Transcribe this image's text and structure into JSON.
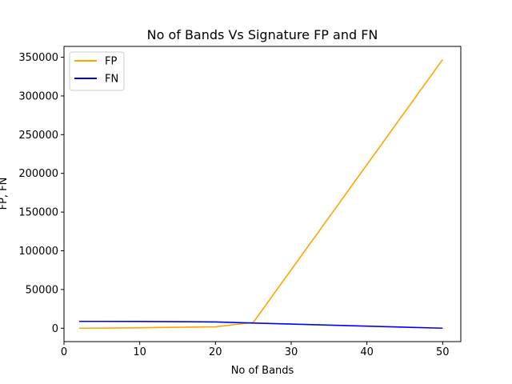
{
  "chart_data": {
    "type": "line",
    "title": "No of Bands Vs Signature FP and FN",
    "xlabel": "No of Bands",
    "ylabel": "FP, FN",
    "xlim": [
      0,
      52.4
    ],
    "ylim": [
      -17300,
      364000
    ],
    "xticks": [
      0,
      10,
      20,
      30,
      40,
      50
    ],
    "yticks": [
      0,
      50000,
      100000,
      150000,
      200000,
      250000,
      300000,
      350000
    ],
    "grid": false,
    "legend": "top-left",
    "series": [
      {
        "name": "FP",
        "color": "#ffa500",
        "x": [
          2,
          5,
          10,
          20,
          25,
          50
        ],
        "y": [
          0,
          100,
          600,
          1800,
          7500,
          347000
        ]
      },
      {
        "name": "FN",
        "color": "#0000ff",
        "x": [
          2,
          5,
          10,
          20,
          25,
          50
        ],
        "y": [
          8800,
          8800,
          8700,
          8100,
          6700,
          0
        ]
      }
    ]
  }
}
